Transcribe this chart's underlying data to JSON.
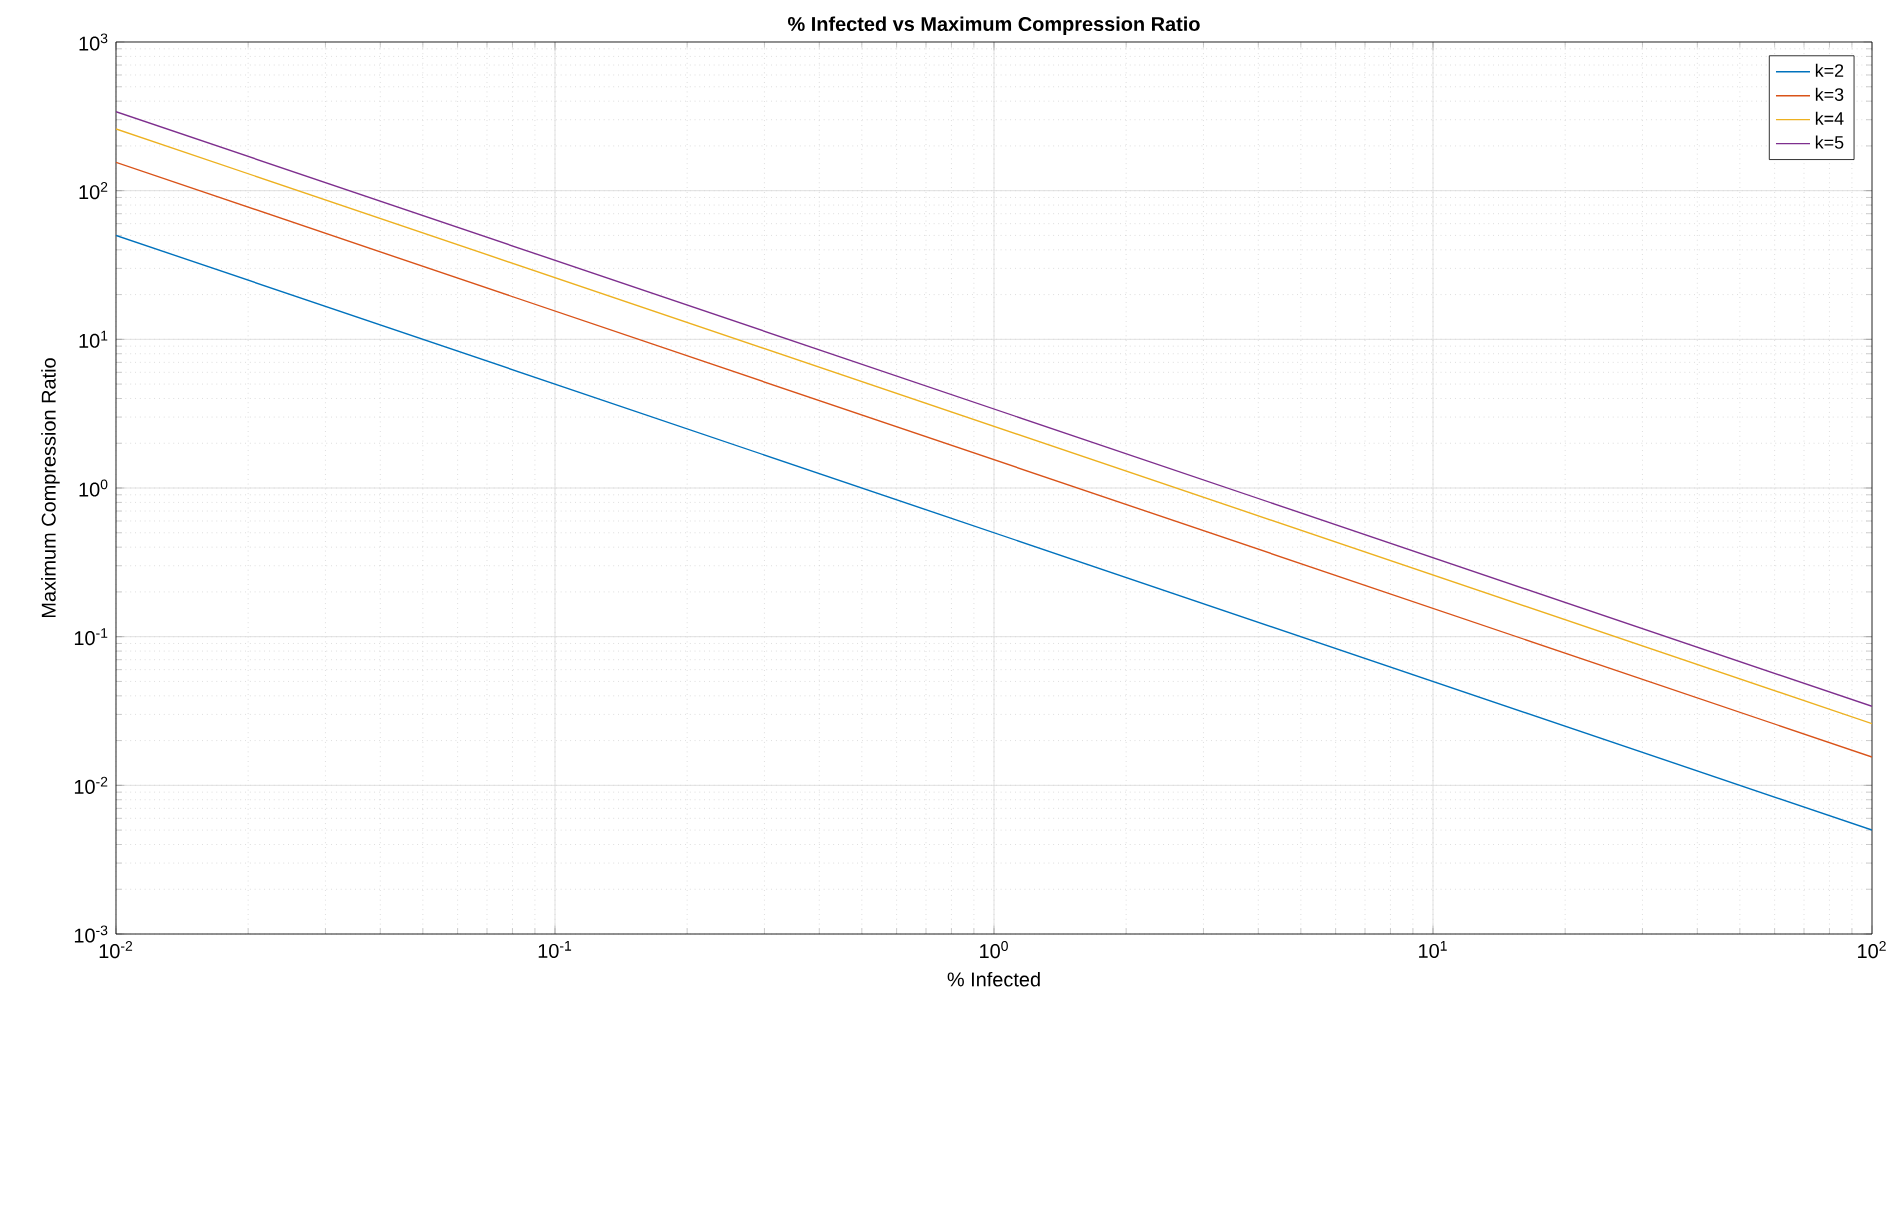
{
  "chart_data": {
    "type": "line",
    "title": "% Infected vs Maximum Compression Ratio",
    "xlabel": "% Infected",
    "ylabel": "Maximum Compression Ratio",
    "log": "xy",
    "grid": true,
    "legend": "top right",
    "line_style": "solid",
    "marker": "none",
    "xlim": [
      0.01,
      100
    ],
    "ylim": [
      0.001,
      1000
    ],
    "xticks": [
      {
        "value": 0.01,
        "label": "10$^{-2}$"
      },
      {
        "value": 0.1,
        "label": "10$^{-1}$"
      },
      {
        "value": 1,
        "label": "10$^{0}$"
      },
      {
        "value": 10,
        "label": "10$^{1}$"
      },
      {
        "value": 100,
        "label": "10$^{2}$"
      }
    ],
    "yticks": [
      {
        "value": 0.001,
        "label": "10$^{-3}$"
      },
      {
        "value": 0.01,
        "label": "10$^{-2}$"
      },
      {
        "value": 0.1,
        "label": "10$^{-1}$"
      },
      {
        "value": 1,
        "label": "10$^{0}$"
      },
      {
        "value": 10,
        "label": "10$^{1}$"
      },
      {
        "value": 100,
        "label": "10$^{2}$"
      },
      {
        "value": 1000,
        "label": "10$^{3}$"
      }
    ],
    "x": [
      0.01,
      100
    ],
    "series": [
      {
        "name": "k=2",
        "color": "#0072bd",
        "values": [
          50,
          0.005
        ]
      },
      {
        "name": "k=3",
        "color": "#d95319",
        "values": [
          155,
          0.0155
        ]
      },
      {
        "name": "k=4",
        "color": "#edb120",
        "values": [
          260,
          0.026
        ]
      },
      {
        "name": "k=5",
        "color": "#7e2f8e",
        "values": [
          340,
          0.034
        ]
      }
    ]
  }
}
